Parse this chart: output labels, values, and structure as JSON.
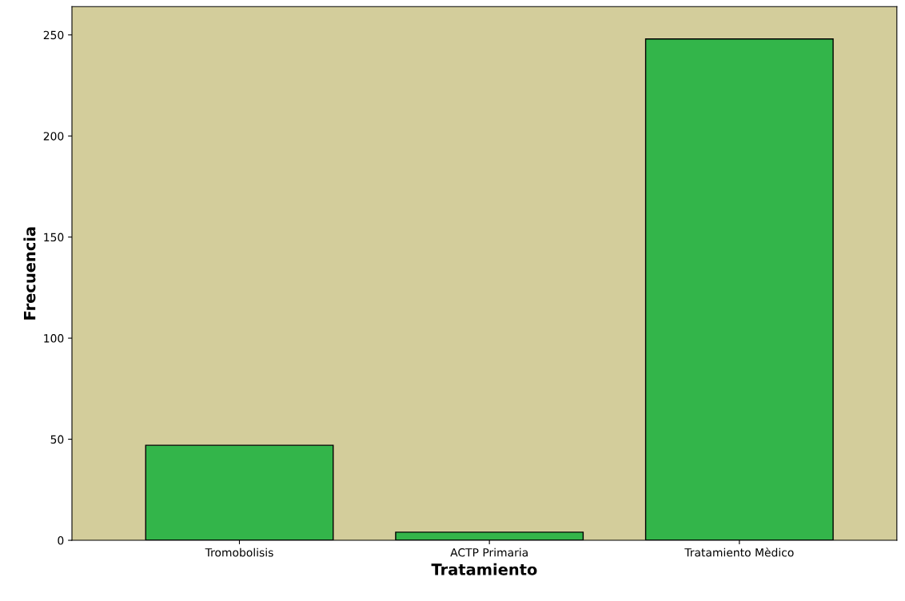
{
  "chart_data": {
    "type": "bar",
    "xlabel": "Tratamiento",
    "ylabel": "Frecuencia",
    "categories": [
      "Tromobolisis",
      "ACTP Primaria",
      "Tratamiento Mèdico"
    ],
    "values": [
      47,
      4,
      248
    ],
    "color": "#33b54a",
    "ylim": [
      0,
      264
    ],
    "yticks": [
      0,
      50,
      100,
      150,
      200,
      250
    ],
    "grid": false,
    "legend": false
  }
}
